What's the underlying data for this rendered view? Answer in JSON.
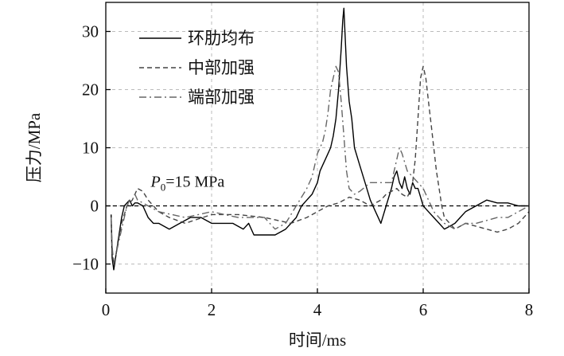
{
  "chart_data": {
    "type": "line",
    "xlabel": "时间/ms",
    "ylabel": "压力/MPa",
    "xlim": [
      0,
      8
    ],
    "ylim": [
      -15,
      35
    ],
    "xticks": [
      0,
      2,
      4,
      6,
      8
    ],
    "yticks": [
      -10,
      0,
      10,
      20,
      30
    ],
    "xtick_labels": [
      "0",
      "2",
      "4",
      "6",
      "8"
    ],
    "ytick_labels": [
      "−10",
      "0",
      "10",
      "20",
      "30"
    ],
    "grid": true,
    "legend_position": "top-left",
    "reference_line": {
      "y": 0,
      "style": "dashed"
    },
    "annotation": {
      "prefix": "P",
      "subscript": "0",
      "suffix": "=15 MPa",
      "x": 0.85,
      "y": 3.0
    },
    "series": [
      {
        "name": "环肋均布",
        "style": "solid",
        "color": "#000000",
        "x": [
          0.1,
          0.12,
          0.15,
          0.2,
          0.25,
          0.3,
          0.35,
          0.4,
          0.45,
          0.5,
          0.55,
          0.6,
          0.7,
          0.8,
          0.9,
          1.0,
          1.2,
          1.4,
          1.6,
          1.8,
          2.0,
          2.2,
          2.4,
          2.6,
          2.7,
          2.8,
          3.0,
          3.2,
          3.4,
          3.6,
          3.7,
          3.8,
          3.9,
          4.0,
          4.05,
          4.1,
          4.15,
          4.2,
          4.25,
          4.3,
          4.35,
          4.4,
          4.45,
          4.48,
          4.5,
          4.52,
          4.55,
          4.6,
          4.65,
          4.7,
          4.8,
          4.9,
          5.0,
          5.1,
          5.2,
          5.3,
          5.4,
          5.45,
          5.5,
          5.55,
          5.6,
          5.65,
          5.7,
          5.75,
          5.8,
          5.85,
          5.9,
          6.0,
          6.1,
          6.2,
          6.3,
          6.4,
          6.5,
          6.6,
          6.7,
          6.8,
          7.0,
          7.2,
          7.4,
          7.6,
          7.8,
          8.0
        ],
        "values": [
          -1.5,
          -9,
          -11,
          -8,
          -5,
          -2,
          0,
          0.5,
          1,
          0,
          0.5,
          0.5,
          0,
          -2,
          -3,
          -3,
          -4,
          -3,
          -2,
          -2,
          -3,
          -3,
          -3,
          -4,
          -3,
          -5,
          -5,
          -5,
          -4,
          -2,
          0,
          1,
          2,
          4,
          6,
          7,
          8,
          9,
          10,
          12,
          15,
          20,
          27,
          32,
          34,
          30,
          24,
          18,
          15,
          10,
          7,
          4,
          1,
          -1,
          -3,
          0,
          3,
          5,
          6,
          4,
          3,
          5,
          3,
          2,
          4,
          3,
          3,
          0,
          -1,
          -2,
          -3,
          -4,
          -3.5,
          -3,
          -2,
          -1,
          0,
          1,
          0.5,
          0.5,
          0,
          0
        ]
      },
      {
        "name": "中部加强",
        "style": "dashed",
        "color": "#444444",
        "x": [
          0.1,
          0.12,
          0.15,
          0.2,
          0.3,
          0.4,
          0.5,
          0.55,
          0.6,
          0.7,
          0.8,
          1.0,
          1.2,
          1.5,
          2.0,
          2.5,
          3.0,
          3.5,
          3.8,
          4.0,
          4.2,
          4.4,
          4.6,
          4.8,
          5.0,
          5.2,
          5.3,
          5.4,
          5.5,
          5.6,
          5.7,
          5.75,
          5.8,
          5.85,
          5.9,
          5.95,
          6.0,
          6.05,
          6.1,
          6.15,
          6.2,
          6.25,
          6.3,
          6.35,
          6.4,
          6.5,
          6.6,
          6.8,
          7.0,
          7.2,
          7.4,
          7.6,
          7.8,
          8.0
        ],
        "values": [
          -2,
          -8,
          -10,
          -8,
          -3,
          0,
          1,
          2,
          3,
          2.5,
          1,
          -1,
          -2,
          -3,
          -1.5,
          -1.5,
          -2,
          -3,
          -2,
          -1,
          0,
          0.5,
          1.5,
          1,
          0,
          1,
          2,
          2.5,
          3,
          2,
          1.5,
          2.5,
          4,
          8,
          15,
          22,
          24,
          22,
          18,
          14,
          10,
          6,
          3,
          0,
          -2,
          -3,
          -4,
          -3,
          -3.5,
          -4,
          -4.5,
          -4,
          -3,
          -1
        ]
      },
      {
        "name": "端部加强",
        "style": "dashdot",
        "color": "#666666",
        "x": [
          0.1,
          0.12,
          0.15,
          0.2,
          0.3,
          0.4,
          0.45,
          0.5,
          0.55,
          0.6,
          0.7,
          0.8,
          1.0,
          1.5,
          2.0,
          2.5,
          3.0,
          3.2,
          3.4,
          3.6,
          3.8,
          3.9,
          4.0,
          4.05,
          4.1,
          4.15,
          4.2,
          4.25,
          4.3,
          4.35,
          4.4,
          4.45,
          4.5,
          4.55,
          4.6,
          4.7,
          4.8,
          5.0,
          5.2,
          5.4,
          5.5,
          5.55,
          5.6,
          5.7,
          5.8,
          5.9,
          6.0,
          6.2,
          6.4,
          6.6,
          6.8,
          7.0,
          7.2,
          7.4,
          7.6,
          7.8,
          8.0
        ],
        "values": [
          -2,
          -7,
          -10,
          -8,
          -4,
          0,
          1,
          1,
          2,
          1,
          0.5,
          0,
          -1,
          -2,
          -1,
          -2,
          -2,
          -4,
          -3,
          0,
          3,
          5,
          9,
          10,
          11,
          13,
          16,
          20,
          22,
          24,
          23,
          18,
          12,
          6,
          3,
          2,
          2.5,
          4,
          4,
          4,
          8,
          10,
          9,
          6,
          5,
          4,
          3,
          -1,
          -3,
          -4,
          -3,
          -3,
          -2.5,
          -2,
          -2,
          -1,
          0
        ]
      }
    ]
  }
}
